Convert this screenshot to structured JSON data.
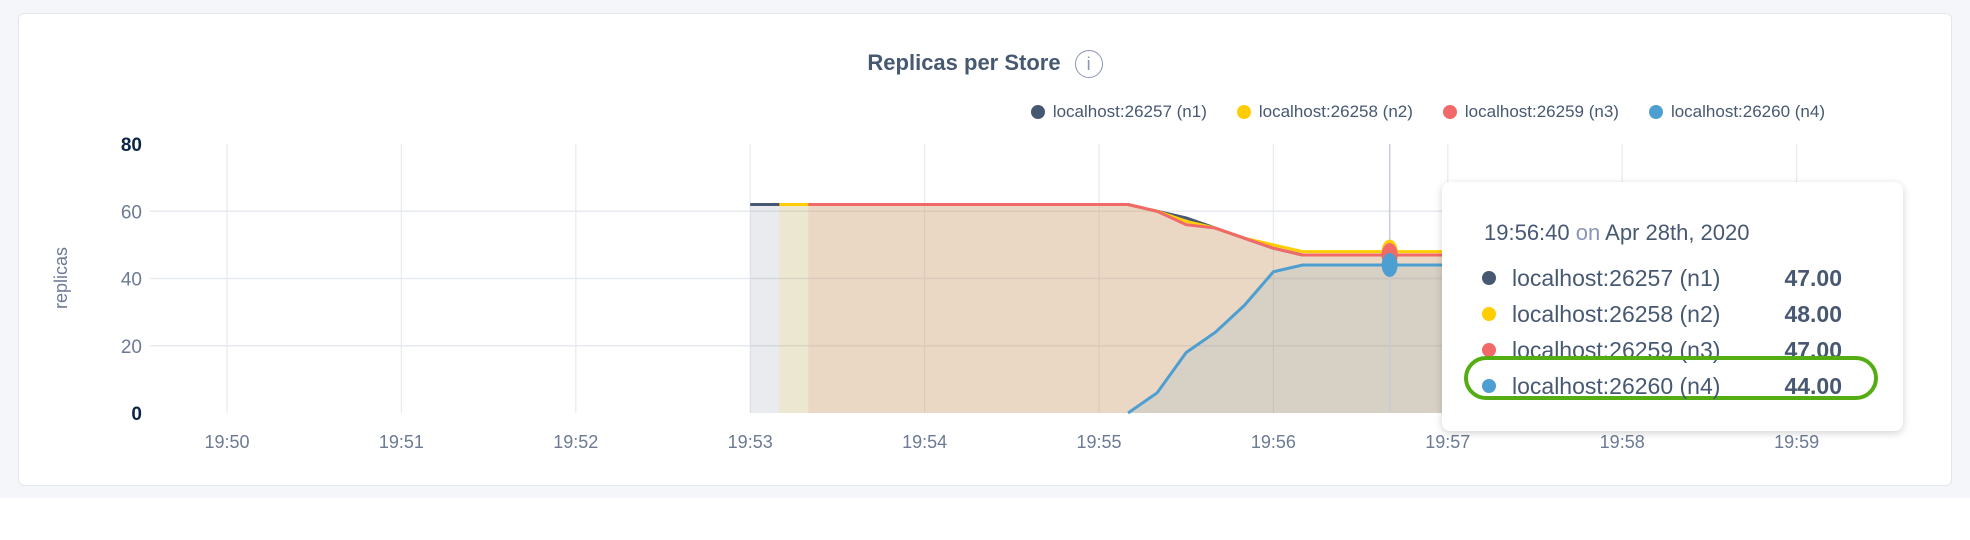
{
  "title": "Replicas per Store",
  "info_icon": "i",
  "chart_data": {
    "type": "area",
    "title": "Replicas per Store",
    "ylabel": "replicas",
    "xlabel": "",
    "ylim": [
      0,
      80
    ],
    "yticks": [
      "0",
      "20",
      "40",
      "60",
      "80"
    ],
    "xticks": [
      "19:50",
      "19:51",
      "19:52",
      "19:53",
      "19:54",
      "19:55",
      "19:56",
      "19:57",
      "19:58",
      "19:59"
    ],
    "grid": true,
    "legend_position": "top-right",
    "series": [
      {
        "name": "localhost:26257 (n1)",
        "color": "#475872",
        "x": [
          "19:53:00",
          "19:53:10",
          "19:53:20",
          "19:55:10",
          "19:55:20",
          "19:55:30",
          "19:55:40",
          "19:55:50",
          "19:56:00",
          "19:56:10",
          "19:56:40",
          "19:57:00"
        ],
        "values": [
          62,
          62,
          62,
          62,
          60,
          58,
          55,
          52,
          49,
          47,
          47,
          47
        ]
      },
      {
        "name": "localhost:26258 (n2)",
        "color": "#ffcd02",
        "x": [
          "19:53:10",
          "19:53:20",
          "19:55:10",
          "19:55:20",
          "19:55:30",
          "19:55:40",
          "19:55:50",
          "19:56:00",
          "19:56:10",
          "19:56:40",
          "19:57:00"
        ],
        "values": [
          62,
          62,
          62,
          60,
          57,
          55,
          52,
          50,
          48,
          48,
          48
        ]
      },
      {
        "name": "localhost:26259 (n3)",
        "color": "#f16969",
        "x": [
          "19:53:20",
          "19:55:10",
          "19:55:20",
          "19:55:30",
          "19:55:40",
          "19:55:50",
          "19:56:00",
          "19:56:10",
          "19:56:40",
          "19:57:00"
        ],
        "values": [
          62,
          62,
          60,
          56,
          55,
          52,
          49,
          47,
          47,
          47
        ]
      },
      {
        "name": "localhost:26260 (n4)",
        "color": "#4e9fd1",
        "x": [
          "19:55:10",
          "19:55:20",
          "19:55:30",
          "19:55:40",
          "19:55:50",
          "19:56:00",
          "19:56:10",
          "19:56:40",
          "19:57:00"
        ],
        "values": [
          0,
          6,
          18,
          24,
          32,
          42,
          44,
          44,
          44
        ]
      }
    ],
    "hover_x": "19:56:40"
  },
  "tooltip": {
    "time": "19:56:40",
    "on": "on",
    "date": "Apr 28th, 2020",
    "rows": [
      {
        "label": "localhost:26257 (n1)",
        "value": "47.00"
      },
      {
        "label": "localhost:26258 (n2)",
        "value": "48.00"
      },
      {
        "label": "localhost:26259 (n3)",
        "value": "47.00"
      },
      {
        "label": "localhost:26260 (n4)",
        "value": "44.00",
        "highlighted": true
      }
    ]
  }
}
